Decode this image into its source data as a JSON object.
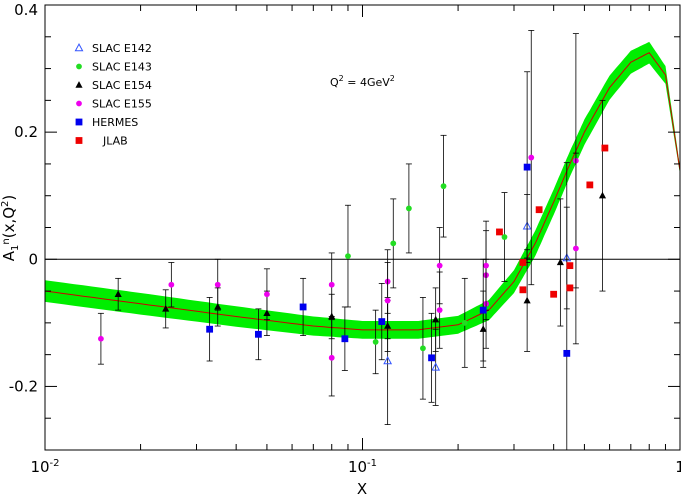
{
  "chart_data": {
    "type": "scatter",
    "xlabel": "X",
    "ylabel": "A1n(x,Q²)",
    "annotation": "Q² = 4GeV²",
    "xscale": "log",
    "xlim": [
      0.01,
      1
    ],
    "ylim": [
      -0.3,
      0.4
    ],
    "x_ticks": [
      {
        "value": 0.01,
        "label": "10",
        "exp": "-2"
      },
      {
        "value": 0.1,
        "label": "10",
        "exp": "-1"
      },
      {
        "value": 1,
        "label": "1",
        "exp": ""
      }
    ],
    "y_ticks": [
      {
        "value": -0.2,
        "label": "-0.2"
      },
      {
        "value": 0,
        "label": "0"
      },
      {
        "value": 0.2,
        "label": "0.2"
      },
      {
        "value": 0.4,
        "label": "0.4"
      }
    ],
    "legend_position": "top-left",
    "zero_line": true,
    "band": {
      "color": "#00ee00",
      "line_color": "#cc0000",
      "x": [
        0.01,
        0.02,
        0.04,
        0.07,
        0.1,
        0.15,
        0.2,
        0.25,
        0.3,
        0.35,
        0.4,
        0.45,
        0.5,
        0.6,
        0.7,
        0.8,
        0.9,
        1.0
      ],
      "center": [
        -0.05,
        -0.07,
        -0.09,
        -0.105,
        -0.111,
        -0.111,
        -0.103,
        -0.08,
        -0.035,
        0.025,
        0.09,
        0.15,
        0.2,
        0.27,
        0.31,
        0.325,
        0.29,
        0.14
      ],
      "half_width": [
        0.017,
        0.017,
        0.016,
        0.015,
        0.014,
        0.014,
        0.014,
        0.016,
        0.018,
        0.02,
        0.02,
        0.02,
        0.02,
        0.019,
        0.018,
        0.017,
        0.014,
        0.006
      ]
    },
    "series": [
      {
        "name": "SLAC E142",
        "marker": "triangle-open",
        "color": "#3355ff",
        "points": [
          [
            0.12,
            -0.16,
            0.1
          ],
          [
            0.17,
            -0.17,
            0.06
          ],
          [
            0.33,
            0.052,
            0.05
          ],
          [
            0.44,
            0.002,
            0.08
          ]
        ]
      },
      {
        "name": "SLAC E143",
        "marker": "circle",
        "color": "#22dd22",
        "points": [
          [
            0.09,
            0.005,
            0.08
          ],
          [
            0.11,
            -0.13,
            0.05
          ],
          [
            0.125,
            0.025,
            0.07
          ],
          [
            0.14,
            0.08,
            0.07
          ],
          [
            0.155,
            -0.14,
            0.08
          ],
          [
            0.18,
            0.115,
            0.08
          ],
          [
            0.21,
            -0.1,
            0.07
          ],
          [
            0.28,
            0.035,
            0.07
          ]
        ]
      },
      {
        "name": "SLAC E154",
        "marker": "triangle",
        "color": "#000000",
        "points": [
          [
            0.017,
            -0.055,
            0.025
          ],
          [
            0.024,
            -0.078,
            0.03
          ],
          [
            0.035,
            -0.075,
            0.03
          ],
          [
            0.05,
            -0.085,
            0.035
          ],
          [
            0.08,
            -0.09,
            0.035
          ],
          [
            0.12,
            -0.105,
            0.04
          ],
          [
            0.17,
            -0.095,
            0.05
          ],
          [
            0.24,
            -0.11,
            0.06
          ],
          [
            0.33,
            -0.065,
            0.08
          ],
          [
            0.42,
            -0.005,
            0.1
          ],
          [
            0.57,
            0.1,
            0.15
          ]
        ]
      },
      {
        "name": "SLAC E155",
        "marker": "circle",
        "color": "#ee00ee",
        "points": [
          [
            0.015,
            -0.125,
            0.04
          ],
          [
            0.025,
            -0.04,
            0.035
          ],
          [
            0.035,
            -0.04,
            0.04
          ],
          [
            0.05,
            -0.055,
            0.04
          ],
          [
            0.08,
            -0.04,
            0.05
          ],
          [
            0.08,
            -0.155,
            0.06
          ],
          [
            0.12,
            -0.035,
            0.05
          ],
          [
            0.12,
            -0.065,
            0.06
          ],
          [
            0.175,
            -0.01,
            0.06
          ],
          [
            0.175,
            -0.08,
            0.06
          ],
          [
            0.245,
            -0.025,
            0.07
          ],
          [
            0.245,
            -0.07,
            0.07
          ],
          [
            0.245,
            -0.01,
            0.07
          ],
          [
            0.34,
            0.16,
            0.2
          ],
          [
            0.47,
            0.155,
            0.2
          ],
          [
            0.47,
            0.017,
            0.15
          ]
        ]
      },
      {
        "name": "HERMES",
        "marker": "square",
        "color": "#0000ee",
        "points": [
          [
            0.033,
            -0.11,
            0.05
          ],
          [
            0.047,
            -0.118,
            0.04
          ],
          [
            0.065,
            -0.075,
            0.045
          ],
          [
            0.088,
            -0.125,
            0.05
          ],
          [
            0.115,
            -0.098,
            0.06
          ],
          [
            0.165,
            -0.155,
            0.07
          ],
          [
            0.24,
            -0.08,
            0.08
          ],
          [
            0.33,
            0.145,
            0.15
          ],
          [
            0.44,
            -0.148,
            0.3
          ]
        ]
      },
      {
        "name": "JLAB",
        "marker": "square",
        "color": "#ee0000",
        "points": [
          [
            0.27,
            0.043,
            0
          ],
          [
            0.32,
            -0.048,
            0
          ],
          [
            0.32,
            -0.005,
            0
          ],
          [
            0.36,
            0.078,
            0
          ],
          [
            0.4,
            -0.055,
            0
          ],
          [
            0.45,
            -0.01,
            0
          ],
          [
            0.45,
            -0.045,
            0
          ],
          [
            0.52,
            0.117,
            0
          ],
          [
            0.58,
            0.175,
            0
          ]
        ]
      }
    ]
  }
}
